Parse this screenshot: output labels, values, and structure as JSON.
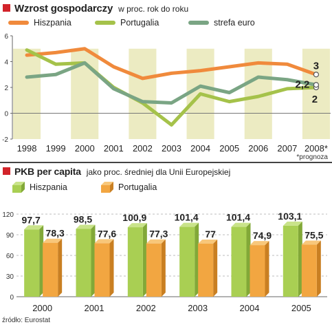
{
  "colors": {
    "accent": "#d2232a",
    "hiszpania": "#f08a3c",
    "portugalia_line": "#a5c24a",
    "strefa": "#7aa584",
    "bar_green": "#a9cf53",
    "bar_orange": "#f2a641",
    "band": "#ecebc2"
  },
  "header1": {
    "title": "Wzrost gospodarczy",
    "subtitle": "w proc. rok do roku"
  },
  "header2": {
    "title": "PKB per capita",
    "subtitle": "jako proc. średniej dla Unii Europejskiej"
  },
  "note": "*prognoza",
  "source": "źródło: Eurostat",
  "chart_data": [
    {
      "type": "line",
      "title": "Wzrost gospodarczy",
      "subtitle": "w proc. rok do roku",
      "x": [
        "1998",
        "1999",
        "2000",
        "2001",
        "2002",
        "2003",
        "2004",
        "2005",
        "2006",
        "2007",
        "2008*"
      ],
      "ylim": [
        -2,
        6
      ],
      "yticks": [
        "-2",
        "0",
        "2",
        "4",
        "6"
      ],
      "series": [
        {
          "name": "Hiszpania",
          "values": [
            4.5,
            4.7,
            5.0,
            3.6,
            2.7,
            3.1,
            3.3,
            3.6,
            3.9,
            3.8,
            3.0
          ],
          "end_label": "3",
          "color": "#f08a3c"
        },
        {
          "name": "Portugalia",
          "values": [
            4.9,
            3.8,
            3.9,
            2.0,
            0.8,
            -0.9,
            1.5,
            0.9,
            1.3,
            1.9,
            2.0
          ],
          "end_label": "2",
          "color": "#a5c24a"
        },
        {
          "name": "strefa euro",
          "values": [
            2.8,
            3.0,
            3.9,
            1.9,
            0.9,
            0.8,
            2.1,
            1.6,
            2.8,
            2.6,
            2.2
          ],
          "end_label": "2,2",
          "color": "#7aa584"
        }
      ],
      "note": "*prognoza",
      "grid": false
    },
    {
      "type": "bar",
      "title": "PKB per capita",
      "subtitle": "jako proc. średniej dla Unii Europejskiej",
      "categories": [
        "2000",
        "2001",
        "2002",
        "2003",
        "2004",
        "2005"
      ],
      "ylim": [
        0,
        120
      ],
      "yticks": [
        "0",
        "30",
        "60",
        "90",
        "120"
      ],
      "series": [
        {
          "name": "Hiszpania",
          "values": [
            97.7,
            98.5,
            100.9,
            101.4,
            101.4,
            103.1
          ],
          "labels": [
            "97,7",
            "98,5",
            "100,9",
            "101,4",
            "101,4",
            "103,1"
          ],
          "color": "#a9cf53"
        },
        {
          "name": "Portugalia",
          "values": [
            78.3,
            77.6,
            77.3,
            77,
            74.9,
            75.5
          ],
          "labels": [
            "78,3",
            "77,6",
            "77,3",
            "77",
            "74,9",
            "75,5"
          ],
          "color": "#f2a641"
        }
      ],
      "grid": true,
      "source": "źródło: Eurostat"
    }
  ]
}
